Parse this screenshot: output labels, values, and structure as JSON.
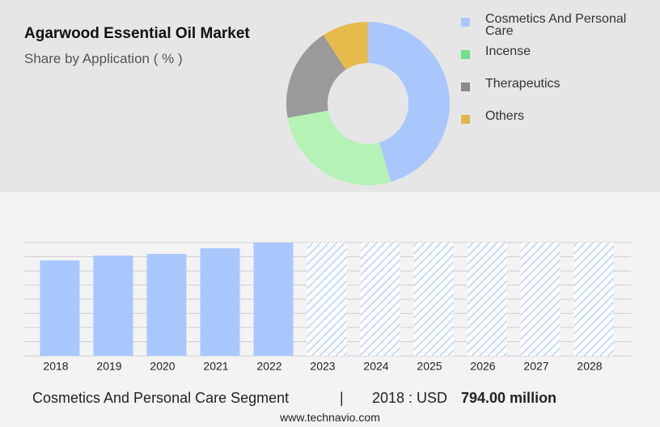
{
  "chart_data": [
    {
      "type": "pie",
      "title": "Agarwood Essential Oil Market",
      "subtitle": "Share by Application ( % )",
      "categories": [
        "Cosmetics And Personal Care",
        "Incense",
        "Therapeutics",
        "Others"
      ],
      "values": [
        45.5,
        26.7,
        18.6,
        9.2
      ],
      "colors": [
        "#a9c7fd",
        "#b5f2b5",
        "#9a9a9a",
        "#e5bb4c"
      ],
      "legend_colors": [
        "#a9c7fd",
        "#6ee08a",
        "#8a8a8a",
        "#e0b84a"
      ]
    },
    {
      "type": "bar",
      "categories": [
        "2018",
        "2019",
        "2020",
        "2021",
        "2022",
        "2023",
        "2024",
        "2025",
        "2026",
        "2027",
        "2028"
      ],
      "values": [
        794,
        834,
        848,
        895,
        942,
        null,
        null,
        null,
        null,
        null,
        null
      ],
      "color": "#a9c7fd",
      "ylim": [
        0,
        942
      ]
    }
  ],
  "footer": {
    "segment": "Cosmetics And Personal Care Segment",
    "separator": "|",
    "year_label": "2018 : USD",
    "value": "794.00 million",
    "source": "www.technavio.com"
  }
}
